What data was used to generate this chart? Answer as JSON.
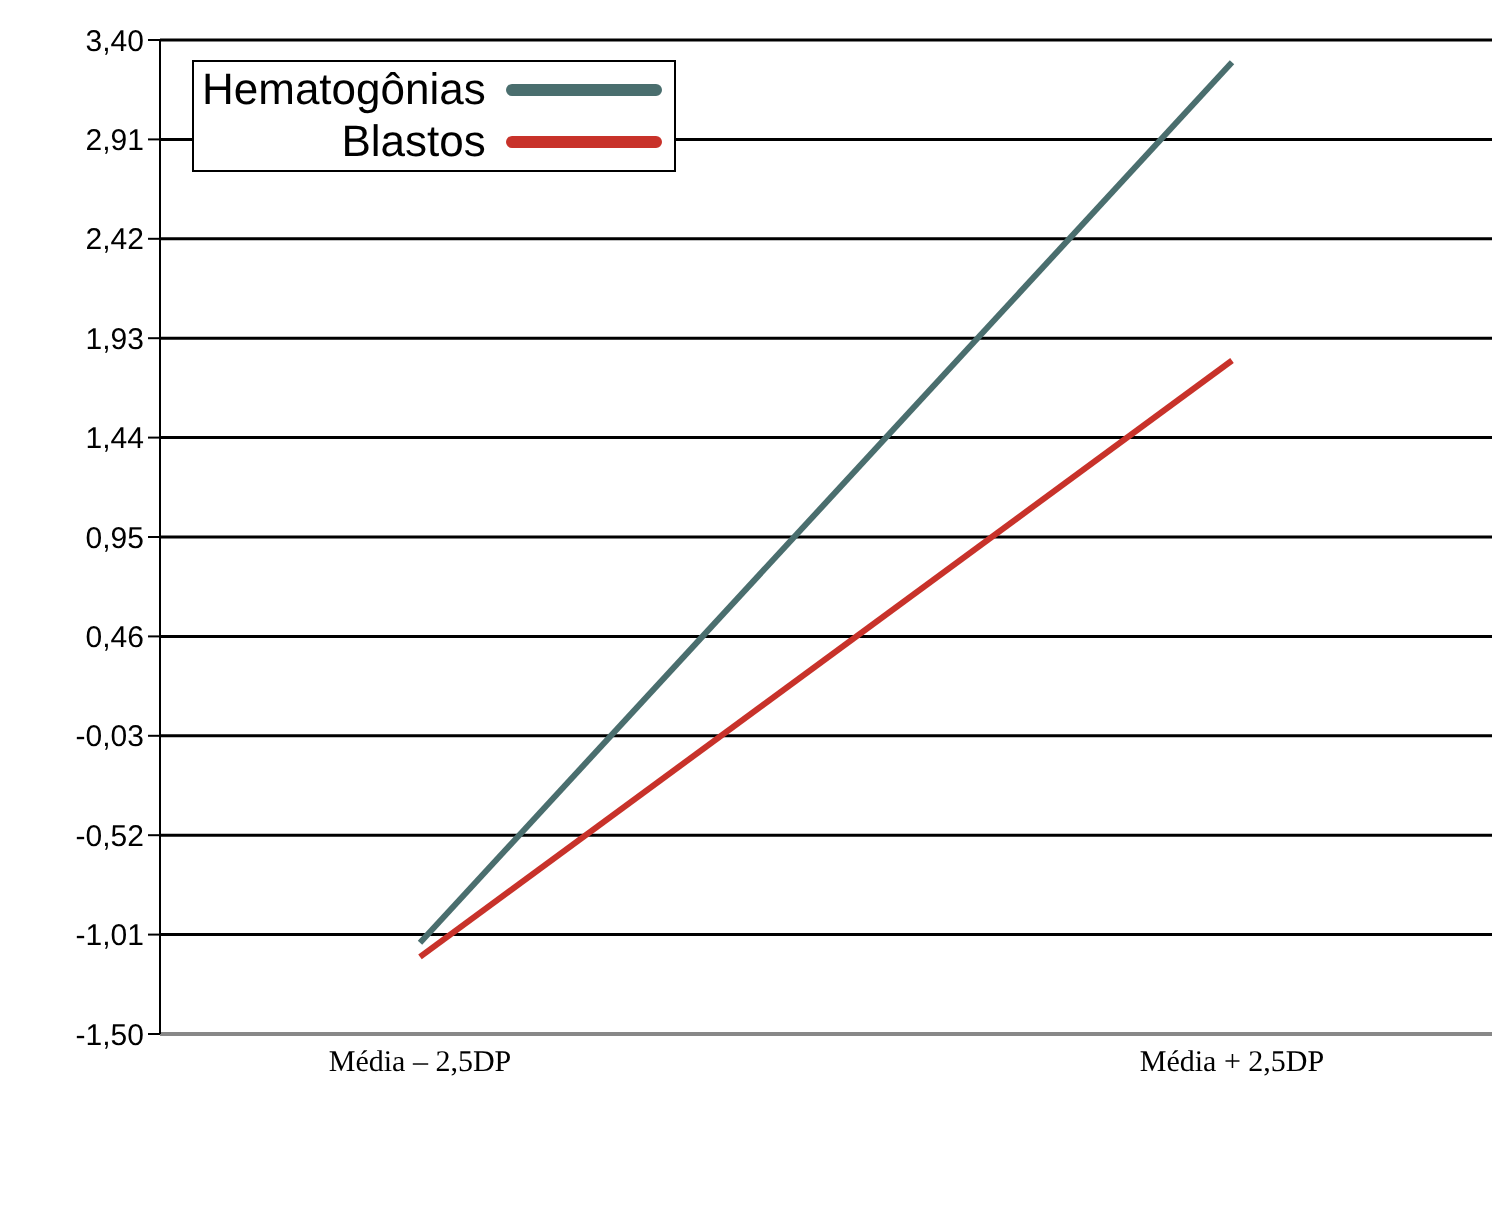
{
  "chart_data": {
    "type": "line",
    "categories": [
      "Média – 2,5DP",
      "Média + 2,5DP"
    ],
    "series": [
      {
        "name": "Hematogônias",
        "color": "#4a6e6e",
        "values": [
          -1.05,
          3.29
        ]
      },
      {
        "name": "Blastos",
        "color": "#c8322a",
        "values": [
          -1.12,
          1.82
        ]
      }
    ],
    "ylim": [
      -1.5,
      3.4
    ],
    "yticks": [
      {
        "value": 3.4,
        "label": "3,40"
      },
      {
        "value": 2.91,
        "label": "2,91"
      },
      {
        "value": 2.42,
        "label": "2,42"
      },
      {
        "value": 1.93,
        "label": "1,93"
      },
      {
        "value": 1.44,
        "label": "1,44"
      },
      {
        "value": 0.95,
        "label": "0,95"
      },
      {
        "value": 0.46,
        "label": "0,46"
      },
      {
        "value": -0.03,
        "label": "-0,03"
      },
      {
        "value": -0.52,
        "label": "-0,52"
      },
      {
        "value": -1.01,
        "label": "-1,01"
      },
      {
        "value": -1.5,
        "label": "-1,50"
      }
    ],
    "grid": "y",
    "legend": "top left",
    "marker": "none",
    "line_style": "solid"
  }
}
